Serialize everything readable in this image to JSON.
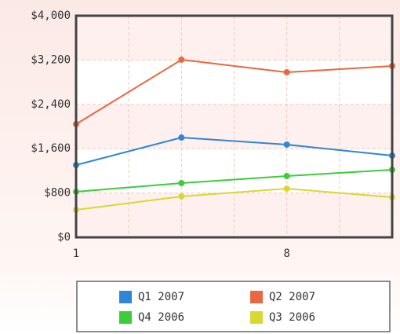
{
  "chart_data": {
    "type": "line",
    "categories": [
      "1",
      null,
      "8",
      null
    ],
    "series": [
      {
        "name": "Q1 2007",
        "color": "#2f86d6",
        "values": [
          1305,
          1801,
          1674,
          1475
        ]
      },
      {
        "name": "Q2 2007",
        "color": "#e8683f",
        "values": [
          2043,
          3206,
          2979,
          3092
        ]
      },
      {
        "name": "Q4 2006",
        "color": "#3ccc3c",
        "values": [
          823,
          979,
          1106,
          1220
        ]
      },
      {
        "name": "Q3 2006",
        "color": "#d8d830",
        "values": [
          496,
          738,
          879,
          723
        ]
      }
    ],
    "ylim": [
      0,
      4000
    ],
    "yticks": [
      {
        "value": 0,
        "label": "$0"
      },
      {
        "value": 800,
        "label": "$800"
      },
      {
        "value": 1600,
        "label": "$1,600"
      },
      {
        "value": 2400,
        "label": "$2,400"
      },
      {
        "value": 3200,
        "label": "$3,200"
      },
      {
        "value": 4000,
        "label": "$4,000"
      }
    ],
    "grid": true
  }
}
